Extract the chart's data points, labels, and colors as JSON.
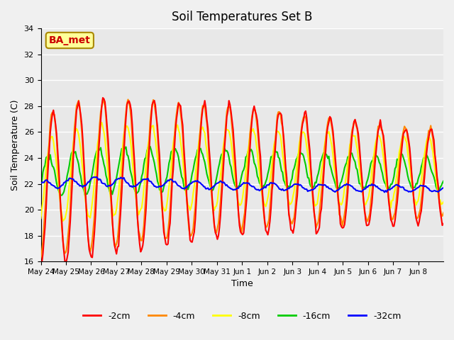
{
  "title": "Soil Temperatures Set B",
  "xlabel": "Time",
  "ylabel": "Soil Temperature (C)",
  "ylim": [
    16,
    34
  ],
  "yticks": [
    16,
    18,
    20,
    22,
    24,
    26,
    28,
    30,
    32,
    34
  ],
  "x_labels": [
    "May 24",
    "May 25",
    "May 26",
    "May 27",
    "May 28",
    "May 29",
    "May 30",
    "May 31",
    "Jun 1",
    "Jun 2",
    "Jun 3",
    "Jun 4",
    "Jun 5",
    "Jun 6",
    "Jun 7",
    "Jun 8"
  ],
  "legend_labels": [
    "-2cm",
    "-4cm",
    "-8cm",
    "-16cm",
    "-32cm"
  ],
  "legend_colors": [
    "#ff0000",
    "#ff8800",
    "#ffff00",
    "#00cc00",
    "#0000ff"
  ],
  "annotation_text": "BA_met",
  "annotation_color": "#cc0000",
  "annotation_bg": "#ffff99",
  "fig_bg": "#f0f0f0",
  "plot_bg": "#e8e8e8",
  "grid_color": "#ffffff",
  "line_width": 1.5
}
